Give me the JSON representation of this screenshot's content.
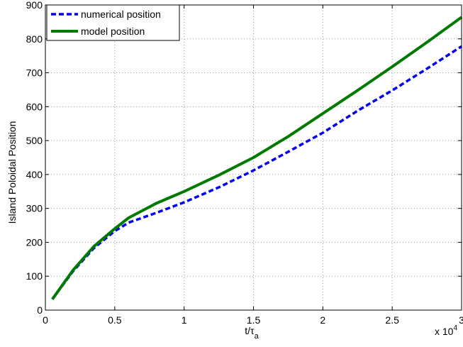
{
  "chart_data": {
    "type": "line",
    "xlabel": "t/τ",
    "xlabel_subscript": "a",
    "ylabel": "Island Poloidal Position",
    "x_multiplier_label": "x 10",
    "x_multiplier_exponent": "4",
    "xlim": [
      0,
      3
    ],
    "ylim": [
      0,
      900
    ],
    "x_ticks": [
      0,
      0.5,
      1,
      1.5,
      2,
      2.5,
      3
    ],
    "x_tick_labels": [
      "0",
      "0.5",
      "1",
      "1.5",
      "2",
      "2.5",
      "3"
    ],
    "y_ticks": [
      0,
      100,
      200,
      300,
      400,
      500,
      600,
      700,
      800,
      900
    ],
    "y_tick_labels": [
      "0",
      "100",
      "200",
      "300",
      "400",
      "500",
      "600",
      "700",
      "800",
      "900"
    ],
    "grid": true,
    "legend_position": "top-left",
    "series": [
      {
        "name": "numerical position",
        "style": "dashed",
        "color": "#0000ee",
        "points": [
          [
            0.05,
            32
          ],
          [
            0.2,
            115
          ],
          [
            0.35,
            183
          ],
          [
            0.5,
            233
          ],
          [
            0.6,
            258
          ],
          [
            0.8,
            287
          ],
          [
            1.0,
            318
          ],
          [
            1.25,
            362
          ],
          [
            1.5,
            412
          ],
          [
            1.75,
            467
          ],
          [
            2.0,
            523
          ],
          [
            2.25,
            588
          ],
          [
            2.5,
            648
          ],
          [
            2.75,
            712
          ],
          [
            3.0,
            778
          ]
        ]
      },
      {
        "name": "model position",
        "style": "solid",
        "color": "#007a00",
        "points": [
          [
            0.05,
            32
          ],
          [
            0.2,
            118
          ],
          [
            0.35,
            188
          ],
          [
            0.5,
            240
          ],
          [
            0.6,
            272
          ],
          [
            0.8,
            315
          ],
          [
            1.0,
            350
          ],
          [
            1.25,
            398
          ],
          [
            1.5,
            450
          ],
          [
            1.75,
            512
          ],
          [
            2.0,
            580
          ],
          [
            2.25,
            648
          ],
          [
            2.5,
            718
          ],
          [
            2.75,
            790
          ],
          [
            3.0,
            864
          ]
        ]
      }
    ]
  }
}
